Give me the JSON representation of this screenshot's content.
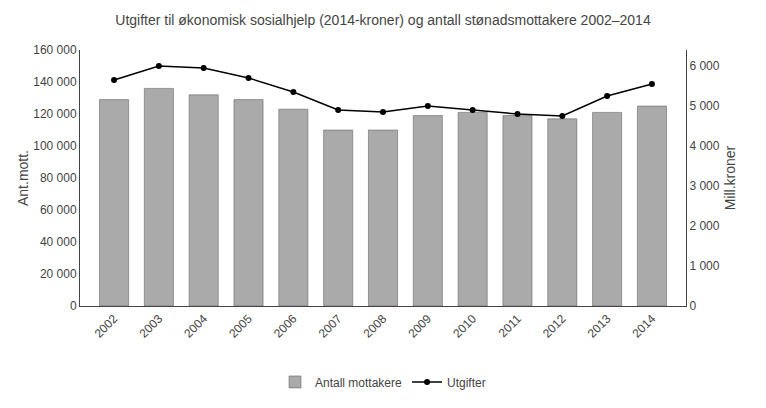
{
  "chart_data": {
    "type": "bar",
    "title": "Utgifter til økonomisk sosialhjelp (2014-kroner) og antall stønadsmottakere 2002–2014",
    "categories": [
      "2002",
      "2003",
      "2004",
      "2005",
      "2006",
      "2007",
      "2008",
      "2009",
      "2010",
      "2011",
      "2012",
      "2013",
      "2014"
    ],
    "series": [
      {
        "name": "Antall mottakere",
        "type": "bar",
        "color": "#aaaaaa",
        "values": [
          129000,
          136000,
          132000,
          129000,
          123000,
          110000,
          110000,
          119000,
          121000,
          119000,
          117000,
          121000,
          125000
        ]
      },
      {
        "name": "Utgifter",
        "type": "line",
        "color": "#000000",
        "marker": "circle",
        "axis": "y2",
        "values": [
          5650,
          6000,
          5950,
          5700,
          5350,
          4900,
          4850,
          5000,
          4900,
          4800,
          4750,
          5250,
          5550
        ]
      }
    ],
    "ylabel": "Ant.mott.",
    "y2label": "Mill.kroner",
    "ylim": [
      0,
      160000
    ],
    "yticks": [
      0,
      {
        "value": 20000,
        "label": "20 000"
      },
      {
        "value": 40000,
        "label": "40 000"
      },
      {
        "value": 60000,
        "label": "60 000"
      },
      {
        "value": 80000,
        "label": "80 000"
      },
      {
        "value": 100000,
        "label": "100 000"
      },
      {
        "value": 120000,
        "label": "120 000"
      },
      {
        "value": 140000,
        "label": "140 000"
      },
      {
        "value": 160000,
        "label": "160 000"
      }
    ],
    "y2lim": [
      0,
      6400
    ],
    "y2ticks": [
      0,
      {
        "value": 1000,
        "label": "1 000"
      },
      {
        "value": 2000,
        "label": "2 000"
      },
      {
        "value": 3000,
        "label": "3 000"
      },
      {
        "value": 4000,
        "label": "4 000"
      },
      {
        "value": 5000,
        "label": "5 000"
      },
      {
        "value": 6000,
        "label": "6 000"
      }
    ],
    "grid": false,
    "legend": "bottom"
  }
}
